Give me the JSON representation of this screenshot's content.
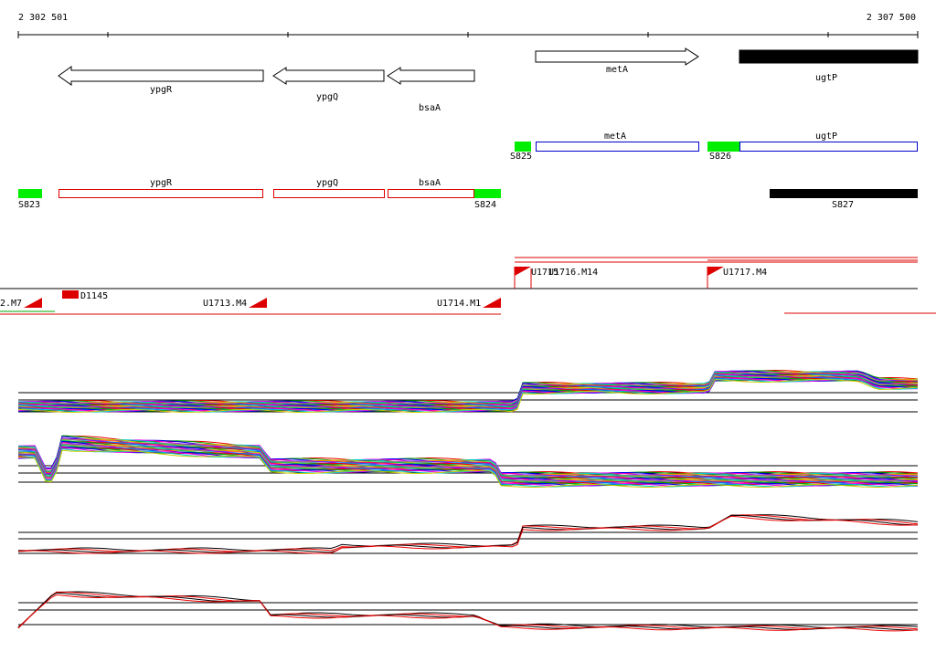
{
  "ruler": {
    "start": "2 302 501",
    "end": "2 307 500"
  },
  "genes": [
    {
      "label": "ypgR"
    },
    {
      "label": "ypgQ"
    },
    {
      "label": "bsaA"
    },
    {
      "label": "metA"
    },
    {
      "label": "ugtP"
    }
  ],
  "transcripts": [
    {
      "label": "metA"
    },
    {
      "label": "ugtP"
    },
    {
      "label": "ypgR"
    },
    {
      "label": "ypgQ"
    },
    {
      "label": "bsaA"
    }
  ],
  "segments": [
    {
      "label": "S825"
    },
    {
      "label": "S826"
    },
    {
      "label": "S823"
    },
    {
      "label": "S824"
    },
    {
      "label": "S827"
    }
  ],
  "shifts": [
    {
      "label": "2.M7"
    },
    {
      "label": "D1145"
    },
    {
      "label": "U1713.M4"
    },
    {
      "label": "U1714.M1"
    },
    {
      "label": "U1715"
    },
    {
      "label": "U1716.M14"
    },
    {
      "label": "U1717.M4"
    }
  ]
}
